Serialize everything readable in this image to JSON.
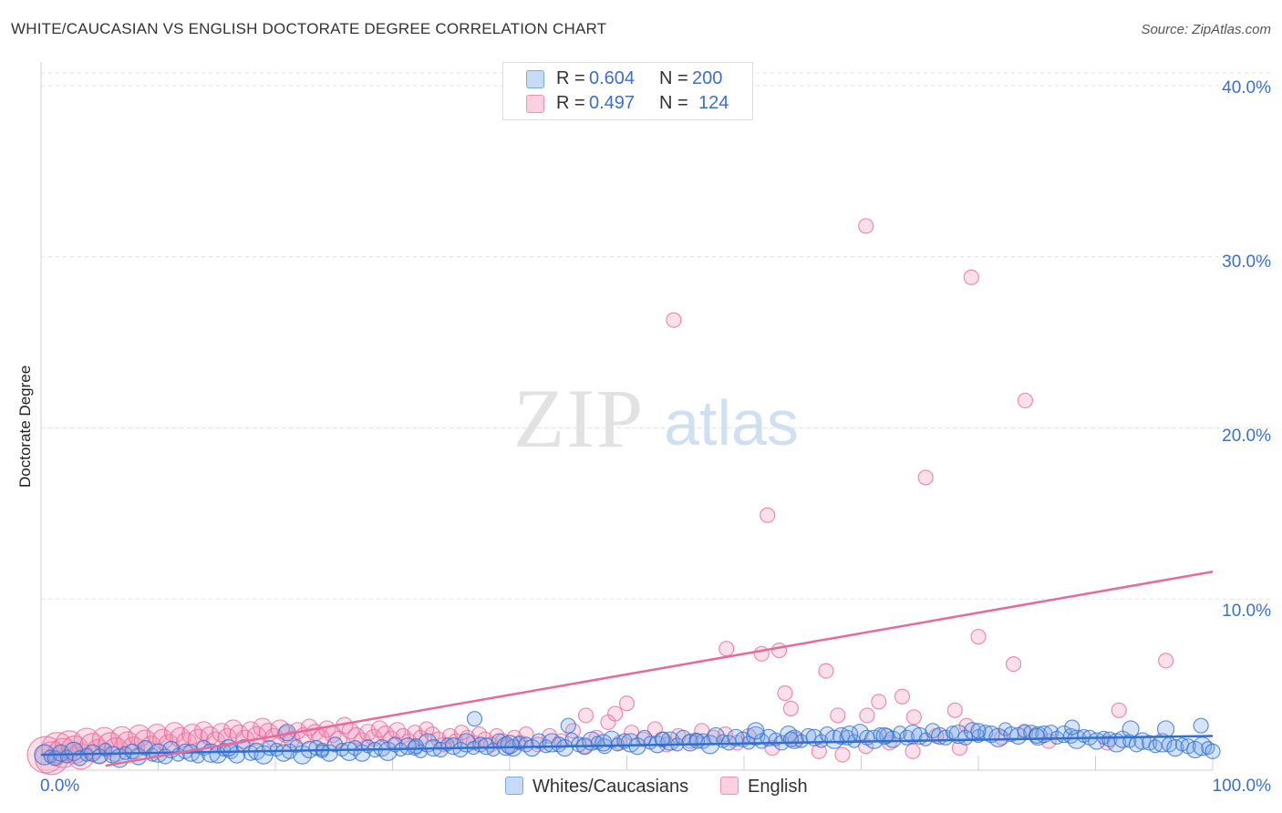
{
  "title": "WHITE/CAUCASIAN VS ENGLISH DOCTORATE DEGREE CORRELATION CHART",
  "source": "Source: ZipAtlas.com",
  "watermark": {
    "zip": "ZIP",
    "atlas": "atlas"
  },
  "legend": {
    "rows": [
      {
        "r_label": "R =",
        "r_value": "0.604",
        "n_label": "N =",
        "n_value": "200",
        "color": "#7ba7e6"
      },
      {
        "r_label": "R =",
        "r_value": "0.497",
        "n_label": "N =",
        "n_value": "124",
        "color": "#f291b5"
      }
    ]
  },
  "bottom_legend": {
    "series1": "Whites/Caucasians",
    "series2": "English"
  },
  "colors": {
    "blue": "#7ba7e6",
    "blue_line": "#2f6fd0",
    "pink": "#f291b5",
    "pink_line": "#e8699a",
    "tick": "#3b6fcf"
  },
  "chart_data": {
    "type": "scatter",
    "title": "WHITE/CAUCASIAN VS ENGLISH DOCTORATE DEGREE CORRELATION CHART",
    "xlabel": "",
    "ylabel": "Doctorate Degree",
    "xlim": [
      0,
      100
    ],
    "ylim": [
      0,
      40
    ],
    "x_tick_labels": [
      "0.0%",
      "100.0%"
    ],
    "y_ticks": [
      10,
      20,
      30,
      40
    ],
    "y_tick_labels": [
      "10.0%",
      "20.0%",
      "30.0%",
      "40.0%"
    ],
    "grid": true,
    "legend_placement": "top-center",
    "series": [
      {
        "name": "Whites/Caucasians",
        "r": 0.604,
        "n": 200,
        "trend": {
          "x": [
            0,
            100
          ],
          "y": [
            0.9,
            2.0
          ]
        },
        "points_x": [
          0.3,
          0.8,
          1.2,
          1.7,
          2.2,
          2.8,
          3.3,
          3.9,
          4.4,
          5.0,
          5.5,
          6.1,
          6.7,
          7.2,
          7.8,
          8.3,
          8.9,
          9.5,
          10.0,
          10.6,
          11.1,
          11.7,
          12.3,
          12.8,
          13.4,
          13.9,
          14.5,
          15.1,
          15.6,
          16.2,
          16.7,
          17.3,
          17.9,
          18.4,
          19.0,
          19.5,
          20.1,
          20.7,
          21.2,
          21.8,
          22.3,
          22.9,
          23.5,
          24.0,
          24.6,
          25.1,
          25.7,
          26.3,
          26.8,
          27.4,
          27.9,
          28.5,
          29.1,
          29.6,
          30.2,
          30.7,
          31.3,
          31.9,
          32.4,
          33.0,
          33.5,
          34.1,
          34.7,
          35.2,
          35.8,
          36.3,
          36.9,
          37.5,
          38.0,
          38.6,
          39.1,
          39.7,
          40.3,
          40.8,
          41.4,
          41.9,
          42.5,
          43.1,
          43.6,
          44.2,
          44.7,
          45.3,
          45.9,
          46.4,
          47.0,
          47.5,
          48.1,
          48.7,
          49.2,
          49.8,
          50.3,
          50.9,
          51.5,
          52.0,
          52.6,
          53.1,
          53.7,
          54.3,
          54.8,
          55.4,
          55.9,
          56.5,
          57.1,
          57.6,
          58.2,
          58.7,
          59.3,
          59.9,
          60.4,
          61.0,
          61.5,
          62.1,
          62.7,
          63.2,
          63.8,
          64.3,
          64.9,
          65.5,
          66.0,
          66.6,
          67.1,
          67.7,
          68.3,
          68.8,
          69.4,
          69.9,
          70.5,
          71.1,
          71.6,
          72.2,
          72.7,
          73.3,
          73.9,
          74.4,
          75.0,
          75.5,
          76.1,
          76.7,
          77.2,
          77.8,
          78.3,
          78.9,
          79.5,
          80.0,
          80.6,
          81.1,
          81.7,
          82.3,
          82.8,
          83.4,
          83.9,
          84.5,
          85.1,
          85.6,
          86.2,
          86.7,
          87.3,
          87.9,
          88.4,
          89.0,
          89.5,
          90.1,
          90.7,
          91.2,
          91.8,
          92.3,
          92.9,
          93.5,
          94.0,
          94.6,
          95.1,
          95.7,
          96.3,
          96.8,
          97.4,
          97.9,
          98.5,
          99.1,
          99.6,
          100.0,
          16,
          24,
          32,
          40,
          48,
          56,
          64,
          72,
          80,
          88,
          96,
          99,
          21,
          37,
          53,
          69,
          85,
          93,
          45,
          61
        ],
        "points_y": [
          0.9,
          0.8,
          0.7,
          1.0,
          0.8,
          1.1,
          0.7,
          0.9,
          1.0,
          0.8,
          1.2,
          0.9,
          0.7,
          1.0,
          1.1,
          0.8,
          1.3,
          0.9,
          1.0,
          0.8,
          1.2,
          0.9,
          1.1,
          1.0,
          0.8,
          1.3,
          1.0,
          0.9,
          1.2,
          1.1,
          0.9,
          1.4,
          1.0,
          1.1,
          0.9,
          1.3,
          1.2,
          1.0,
          1.1,
          1.4,
          0.9,
          1.2,
          1.3,
          1.1,
          1.0,
          1.5,
          1.2,
          1.1,
          1.3,
          1.0,
          1.4,
          1.2,
          1.3,
          1.1,
          1.5,
          1.2,
          1.4,
          1.3,
          1.1,
          1.6,
          1.3,
          1.2,
          1.5,
          1.4,
          1.2,
          1.6,
          1.3,
          1.5,
          1.4,
          1.2,
          1.7,
          1.4,
          1.3,
          1.6,
          1.5,
          1.3,
          1.7,
          1.4,
          1.6,
          1.5,
          1.3,
          1.8,
          1.5,
          1.4,
          1.7,
          1.6,
          1.4,
          1.8,
          1.5,
          1.7,
          1.6,
          1.4,
          1.9,
          1.6,
          1.5,
          1.8,
          1.7,
          1.5,
          1.9,
          1.6,
          1.8,
          1.7,
          1.5,
          2.0,
          1.7,
          1.6,
          1.9,
          1.8,
          1.6,
          2.0,
          1.7,
          1.9,
          1.8,
          1.6,
          2.1,
          1.8,
          1.7,
          2.0,
          1.9,
          1.7,
          2.1,
          1.8,
          2.0,
          1.9,
          1.7,
          2.2,
          1.9,
          1.8,
          2.1,
          2.0,
          1.8,
          2.2,
          1.9,
          2.1,
          2.0,
          1.8,
          2.3,
          2.0,
          1.9,
          2.2,
          2.1,
          1.9,
          2.3,
          2.0,
          2.2,
          2.1,
          1.9,
          2.4,
          2.1,
          2.0,
          2.3,
          2.2,
          2.0,
          2.1,
          2.2,
          1.9,
          2.1,
          2.0,
          1.8,
          2.0,
          1.9,
          1.7,
          1.9,
          1.8,
          1.6,
          1.8,
          1.7,
          1.5,
          1.7,
          1.6,
          1.4,
          1.6,
          1.5,
          1.3,
          1.5,
          1.4,
          1.2,
          1.4,
          1.3,
          1.1,
          1.3,
          1.2,
          1.4,
          1.5,
          1.6,
          1.7,
          1.8,
          2.0,
          2.3,
          2.5,
          2.4,
          2.6,
          2.2,
          3.0,
          1.8,
          2.1,
          2.0,
          2.4,
          2.6,
          2.3,
          2.2,
          2.1
        ],
        "size": [
          22,
          14,
          16,
          18,
          14,
          20,
          16,
          14,
          18,
          16,
          14,
          18,
          20,
          14,
          16,
          18,
          16,
          14,
          20,
          16,
          18,
          14,
          16,
          18,
          14,
          16,
          20,
          18,
          14,
          16,
          18,
          14,
          16,
          18,
          20,
          16,
          14,
          18,
          16,
          14,
          20,
          18,
          16,
          14,
          18,
          16,
          14,
          20,
          16,
          18,
          14,
          16,
          18,
          20,
          16,
          14,
          18,
          16,
          14,
          20,
          18,
          16,
          14,
          18,
          16,
          20,
          14,
          16,
          18,
          14,
          16,
          20,
          18,
          14,
          16,
          18,
          16,
          14,
          20,
          16,
          18,
          14,
          16,
          18,
          20,
          14,
          16,
          18,
          14,
          16,
          20,
          18,
          16,
          14,
          18,
          16,
          20,
          14,
          16,
          18,
          14,
          16,
          20,
          18,
          14,
          16,
          18,
          16,
          14,
          20,
          16,
          18,
          14,
          16,
          18,
          20,
          14,
          16,
          18,
          14,
          16,
          20,
          18,
          16,
          14,
          18,
          16,
          20,
          14,
          16,
          18,
          14,
          16,
          20,
          18,
          14,
          16,
          18,
          16,
          14,
          20,
          16,
          18,
          14,
          16,
          18,
          20,
          14,
          16,
          18,
          14,
          16,
          20,
          18,
          16,
          14,
          18,
          16,
          20,
          14,
          16,
          18,
          14,
          16,
          20,
          18,
          14,
          16,
          18,
          16,
          14,
          20,
          16,
          18,
          14,
          16,
          18,
          20,
          14,
          16,
          18,
          14,
          16,
          20,
          18,
          16,
          16,
          18,
          16,
          16,
          18,
          16,
          18,
          16,
          16,
          18,
          16,
          18,
          16,
          18,
          16,
          18,
          16,
          18,
          16,
          16
        ]
      },
      {
        "name": "English",
        "r": 0.497,
        "n": 124,
        "trend": {
          "x": [
            0,
            100
          ],
          "y": [
            -0.4,
            11.6
          ]
        },
        "points_x": [
          0.4,
          0.9,
          1.4,
          1.9,
          2.4,
          2.9,
          3.4,
          3.9,
          4.4,
          4.9,
          5.4,
          5.9,
          6.4,
          6.9,
          7.4,
          7.9,
          8.4,
          8.9,
          9.4,
          9.9,
          10.4,
          10.9,
          11.4,
          11.9,
          12.4,
          12.9,
          13.4,
          13.9,
          14.4,
          14.9,
          15.4,
          15.9,
          16.4,
          16.9,
          17.4,
          17.9,
          18.4,
          18.9,
          19.4,
          19.9,
          20.4,
          20.9,
          21.4,
          21.9,
          22.4,
          22.9,
          23.4,
          23.9,
          24.4,
          24.9,
          25.4,
          25.9,
          26.4,
          26.9,
          27.4,
          27.9,
          28.4,
          28.9,
          29.4,
          29.9,
          30.4,
          30.9,
          31.4,
          31.9,
          32.4,
          32.9,
          33.4,
          33.9,
          34.4,
          34.9,
          35.4,
          35.9,
          36.4,
          36.9,
          37.4,
          37.9,
          38.4,
          38.9,
          39.4,
          39.9,
          40.4,
          40.9,
          41.4,
          42.4,
          43.4,
          44.4,
          45.4,
          46.4,
          47.4,
          48.4,
          49.4,
          50.4,
          51.4,
          52.4,
          53.4,
          54.4,
          55.4,
          56.4,
          57.4,
          58.4,
          59.4,
          60.4,
          62.4,
          64.4,
          66.4,
          68.4,
          70.4,
          72.4,
          74.4,
          76.4,
          78.4,
          70.5,
          74.5,
          79.0,
          82.0,
          86.0,
          49.0,
          64.0,
          71.5,
          63.0,
          68.0,
          73.5,
          78.0,
          84.0,
          91.0
        ],
        "points_y": [
          0.9,
          0.7,
          1.3,
          1.0,
          1.5,
          1.2,
          0.8,
          1.7,
          1.4,
          1.1,
          1.8,
          1.5,
          1.2,
          1.9,
          1.6,
          1.3,
          2.0,
          1.7,
          1.4,
          2.1,
          1.8,
          1.5,
          2.2,
          1.9,
          1.6,
          2.1,
          1.8,
          2.3,
          2.0,
          1.7,
          2.2,
          1.9,
          2.4,
          2.1,
          1.8,
          2.3,
          2.0,
          2.5,
          2.2,
          1.9,
          2.4,
          2.1,
          1.8,
          2.3,
          2.0,
          2.5,
          2.2,
          1.9,
          2.4,
          2.1,
          1.8,
          2.6,
          2.3,
          2.0,
          1.7,
          2.2,
          1.9,
          2.4,
          2.1,
          1.8,
          2.3,
          2.0,
          1.7,
          2.2,
          1.9,
          2.4,
          2.1,
          1.8,
          1.5,
          2.0,
          1.7,
          2.2,
          1.9,
          1.6,
          2.1,
          1.8,
          1.5,
          2.0,
          1.7,
          1.4,
          1.9,
          1.6,
          2.1,
          1.5,
          2.0,
          1.7,
          2.3,
          1.4,
          1.9,
          2.8,
          1.6,
          2.2,
          1.8,
          2.4,
          1.5,
          2.0,
          1.7,
          2.3,
          1.9,
          2.1,
          1.6,
          2.0,
          1.3,
          1.8,
          1.1,
          0.9,
          1.4,
          1.6,
          1.1,
          2.0,
          1.3,
          3.2,
          3.1,
          2.6,
          1.9,
          1.7,
          3.3,
          3.6,
          4.0,
          7.0,
          3.2,
          4.3,
          3.5,
          2.2,
          1.6
        ],
        "size": [
          40,
          36,
          34,
          32,
          30,
          30,
          28,
          28,
          28,
          26,
          26,
          26,
          26,
          24,
          24,
          24,
          24,
          24,
          22,
          22,
          22,
          22,
          22,
          22,
          22,
          22,
          22,
          20,
          20,
          20,
          20,
          20,
          20,
          20,
          20,
          20,
          20,
          20,
          20,
          20,
          20,
          18,
          18,
          18,
          18,
          18,
          18,
          18,
          18,
          18,
          18,
          18,
          18,
          18,
          18,
          18,
          18,
          18,
          18,
          18,
          18,
          16,
          16,
          16,
          16,
          16,
          16,
          16,
          16,
          16,
          16,
          16,
          16,
          16,
          16,
          16,
          16,
          16,
          16,
          16,
          16,
          16,
          16,
          16,
          16,
          16,
          16,
          16,
          16,
          16,
          16,
          16,
          16,
          16,
          16,
          16,
          16,
          16,
          16,
          16,
          16,
          16,
          16,
          16,
          16,
          16,
          16,
          16,
          16,
          16,
          16,
          16,
          16,
          16,
          16,
          16,
          16,
          16,
          16,
          16,
          16,
          16,
          16,
          16
        ],
        "outliers_x": [
          70.4,
          79.4,
          54.0,
          84.0,
          75.5,
          62.0,
          80.0,
          58.5,
          46.5,
          50.0,
          61.5,
          67.0,
          83.0,
          96.0,
          92.0,
          63.5
        ],
        "outliers_y": [
          31.8,
          28.8,
          26.3,
          21.6,
          17.1,
          14.9,
          7.8,
          7.1,
          3.2,
          3.9,
          6.8,
          5.8,
          6.2,
          6.4,
          3.5,
          4.5
        ]
      }
    ]
  }
}
